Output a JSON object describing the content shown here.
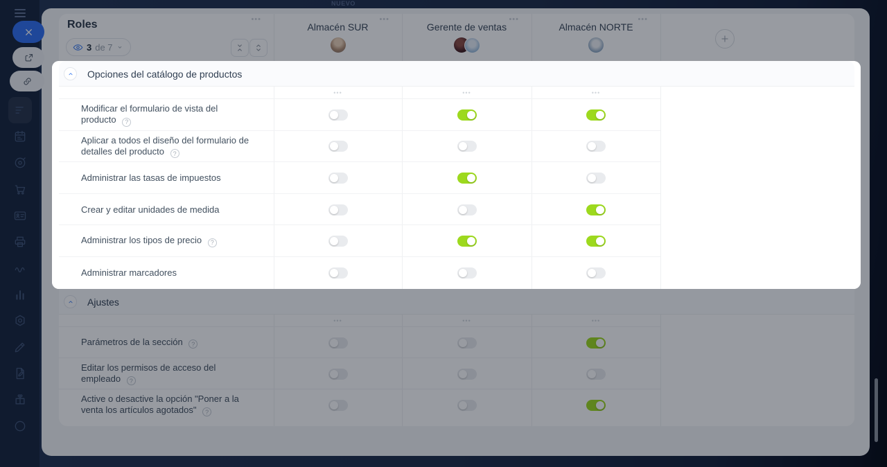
{
  "topbar": {
    "new_badge": "NUEVO"
  },
  "colors": {
    "toggle_on": "#9dd91e",
    "accent_blue": "#3a7af0",
    "overlay": "rgba(10,17,30,0.42)",
    "sidebar_bg": "#16233c"
  },
  "sidebar": {
    "icons": [
      "filter-icon",
      "calendar-icon",
      "target-icon",
      "cart-icon",
      "badge-icon",
      "printer-icon",
      "waves-icon",
      "chart-icon",
      "nut-icon",
      "pencil-icon",
      "document-icon",
      "gift-icon",
      "circle-icon"
    ],
    "active_icon": "filter-icon"
  },
  "tour": {
    "buttons": [
      {
        "icon": "close-icon"
      },
      {
        "icon": "open-external-icon"
      },
      {
        "icon": "copy-link-icon"
      }
    ]
  },
  "roles": {
    "title": "Roles",
    "filter_count": "3",
    "filter_of": "de 7",
    "menu_dots": "•••"
  },
  "columns": [
    {
      "name": "Almacén SUR",
      "avatars": [
        "man-tan"
      ],
      "menu_dots": "•••"
    },
    {
      "name": "Gerente de ventas",
      "avatars": [
        "woman-dark",
        "person-blue"
      ],
      "menu_dots": "•••"
    },
    {
      "name": "Almacén NORTE",
      "avatars": [
        "person-light"
      ],
      "menu_dots": "•••"
    }
  ],
  "add_column": {
    "icon": "plus-icon"
  },
  "sections": [
    {
      "title": "Opciones del catálogo de productos",
      "highlighted": true,
      "rows": [
        {
          "label": "Modificar el formulario de vista del producto",
          "help": true,
          "toggles": [
            false,
            true,
            true
          ]
        },
        {
          "label": "Aplicar a todos el diseño del formulario de detalles del producto",
          "help": true,
          "toggles": [
            false,
            false,
            false
          ]
        },
        {
          "label": "Administrar las tasas de impuestos",
          "help": false,
          "toggles": [
            false,
            true,
            false
          ]
        },
        {
          "label": "Crear y editar unidades de medida",
          "help": false,
          "toggles": [
            false,
            false,
            true
          ]
        },
        {
          "label": "Administrar los tipos de precio",
          "help": true,
          "toggles": [
            false,
            true,
            true
          ]
        },
        {
          "label": "Administrar marcadores",
          "help": false,
          "toggles": [
            false,
            false,
            false
          ]
        }
      ]
    },
    {
      "title": "Ajustes",
      "highlighted": false,
      "rows": [
        {
          "label": "Parámetros de la sección",
          "help": true,
          "toggles": [
            false,
            false,
            true
          ]
        },
        {
          "label": "Editar los permisos de acceso del empleado",
          "help": true,
          "toggles": [
            false,
            false,
            false
          ]
        },
        {
          "label": "Active o desactive la opción \"Poner a la venta los artículos agotados\"",
          "help": true,
          "toggles": [
            false,
            false,
            true
          ]
        }
      ]
    }
  ]
}
